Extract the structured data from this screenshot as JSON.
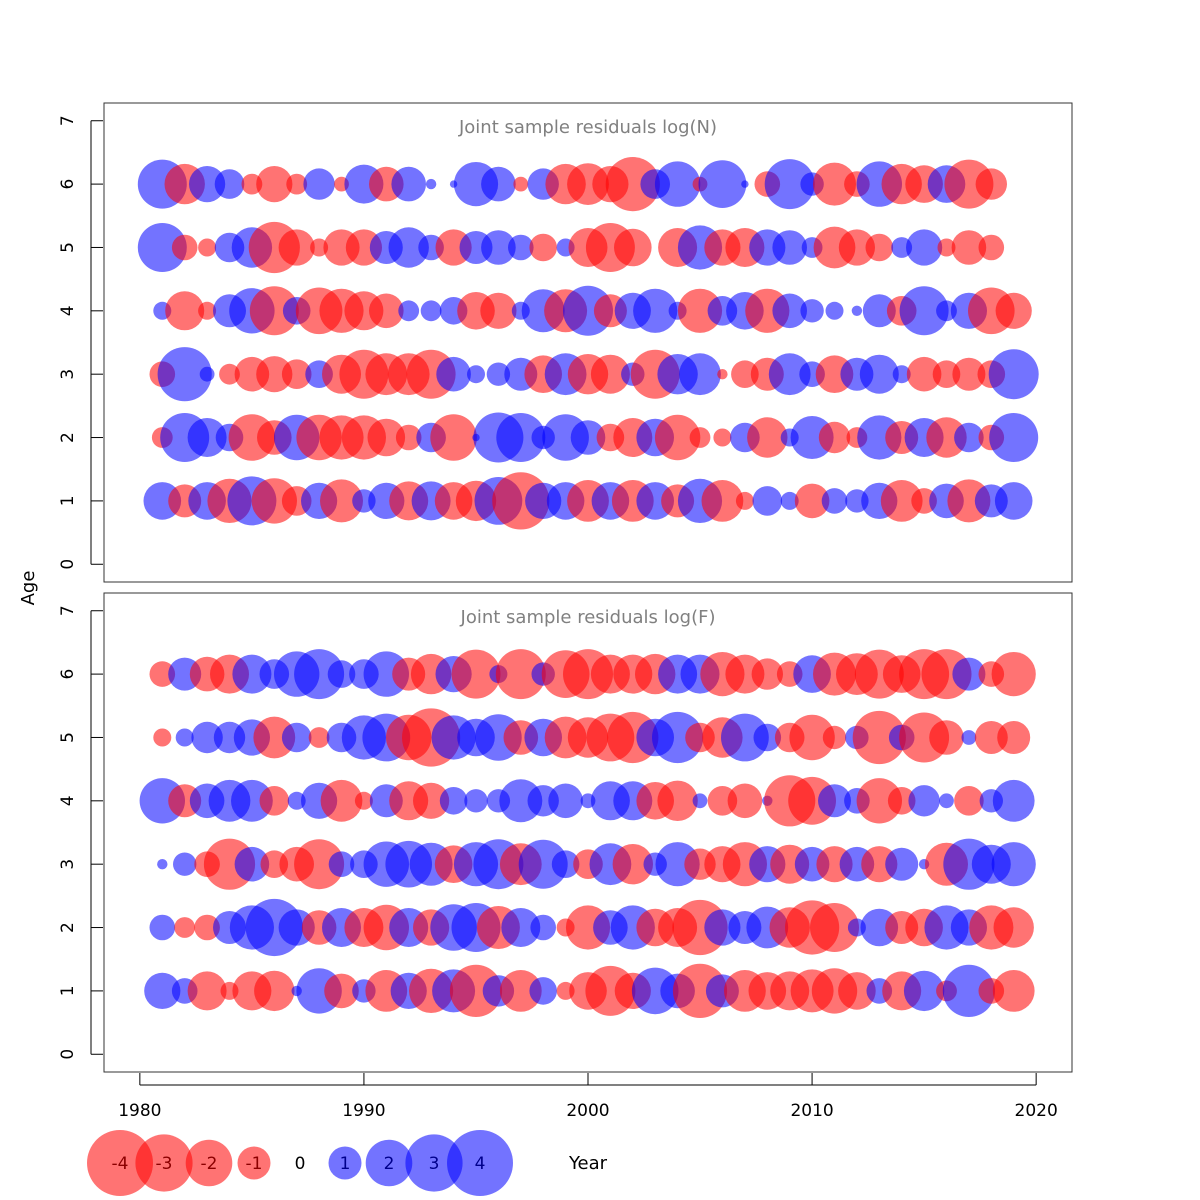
{
  "chart_data": {
    "type": "scatter",
    "subtype": "bubble",
    "colors": {
      "negative": "#FF0000",
      "positive": "#0000FF",
      "opacity": 0.55
    },
    "x_axis": {
      "label": "Year",
      "ticks": [
        1980,
        1990,
        2000,
        2010,
        2020
      ],
      "range": [
        1978.4,
        2021.6
      ]
    },
    "y_axis": {
      "label": "Age",
      "ticks": [
        0,
        1,
        2,
        3,
        4,
        5,
        6,
        7
      ],
      "range": [
        -0.28,
        7.28
      ]
    },
    "legend": {
      "position": "bottom-left",
      "values": [
        -4,
        -3,
        -2,
        -1,
        0,
        1,
        2,
        3,
        4
      ],
      "labels": [
        "-4",
        "-3",
        "-2",
        "-1",
        "0",
        "1",
        "2",
        "3",
        "4"
      ]
    },
    "years": [
      1981,
      1982,
      1983,
      1984,
      1985,
      1986,
      1987,
      1988,
      1989,
      1990,
      1991,
      1992,
      1993,
      1994,
      1995,
      1996,
      1997,
      1998,
      1999,
      2000,
      2001,
      2002,
      2003,
      2004,
      2005,
      2006,
      2007,
      2008,
      2009,
      2010,
      2011,
      2012,
      2013,
      2014,
      2015,
      2016,
      2017,
      2018,
      2019
    ],
    "panels": [
      {
        "title": "Joint sample residuals log(N)",
        "residuals": [
          {
            "age": 6,
            "values": [
              2.2,
              -1.5,
              1.2,
              0.8,
              -0.4,
              -1.2,
              -0.4,
              0.9,
              -0.2,
              1.4,
              -1.1,
              1.1,
              0.1,
              0.05,
              1.8,
              1.1,
              -0.2,
              0.9,
              -1.5,
              -1.6,
              -1.2,
              -2.7,
              0.8,
              1.9,
              -0.2,
              2.1,
              0.05,
              -0.6,
              2.3,
              0.5,
              -1.7,
              -0.6,
              1.9,
              -1.5,
              -1.3,
              1.3,
              -2.2,
              -0.9,
              0.0
            ]
          },
          {
            "age": 5,
            "values": [
              2.2,
              -0.6,
              -0.3,
              0.8,
              1.5,
              -2.4,
              -1.2,
              -0.3,
              -1.2,
              -1.2,
              1.0,
              1.5,
              0.6,
              -1.2,
              1.0,
              1.1,
              0.6,
              -0.7,
              0.3,
              -1.4,
              -2.2,
              -1.3,
              0.0,
              -1.4,
              1.8,
              -1.2,
              -1.4,
              1.2,
              1.1,
              0.4,
              -1.6,
              -1.2,
              -0.7,
              0.4,
              1.2,
              -0.3,
              -1.1,
              -0.6,
              0.0
            ]
          },
          {
            "age": 4,
            "values": [
              0.3,
              -1.4,
              -0.3,
              1.0,
              1.9,
              -2.2,
              0.7,
              -2.0,
              -1.8,
              -1.4,
              -1.1,
              0.4,
              0.4,
              0.7,
              -1.3,
              -1.2,
              0.3,
              1.7,
              -1.7,
              2.3,
              -1.0,
              1.2,
              1.8,
              0.3,
              -1.8,
              0.8,
              1.3,
              -1.8,
              1.1,
              0.5,
              0.3,
              0.1,
              1.0,
              -0.8,
              2.2,
              0.4,
              1.2,
              -2.0,
              -1.2
            ]
          },
          {
            "age": 3,
            "values": [
              -0.6,
              2.7,
              0.2,
              -0.4,
              -1.1,
              -1.2,
              -0.8,
              0.7,
              -1.4,
              -2.2,
              -1.6,
              -1.6,
              -2.2,
              1.1,
              0.3,
              0.5,
              1.0,
              -1.3,
              1.6,
              -1.5,
              -1.4,
              0.5,
              -2.2,
              1.5,
              1.6,
              -0.1,
              -0.7,
              -1.0,
              1.6,
              0.6,
              -1.3,
              1.0,
              1.4,
              0.3,
              -1.1,
              -0.7,
              -1.0,
              -0.7,
              2.3
            ]
          },
          {
            "age": 2,
            "values": [
              -0.4,
              2.2,
              1.4,
              0.7,
              -2.0,
              -1.1,
              1.9,
              -1.9,
              -1.8,
              -1.8,
              -1.3,
              -0.6,
              0.8,
              -2.0,
              0.05,
              2.3,
              2.2,
              0.5,
              2.0,
              1.1,
              -0.7,
              -1.4,
              1.3,
              -1.9,
              -0.4,
              -0.3,
              0.8,
              -1.5,
              0.3,
              1.7,
              -0.9,
              -0.4,
              1.8,
              -1.0,
              1.4,
              -1.5,
              0.8,
              -0.6,
              2.2
            ]
          },
          {
            "age": 1,
            "values": [
              1.3,
              -1.0,
              1.3,
              -1.8,
              2.2,
              -1.9,
              -0.8,
              1.2,
              -1.7,
              0.5,
              1.2,
              -1.4,
              1.4,
              -1.3,
              -1.5,
              2.1,
              -3.0,
              1.2,
              1.3,
              -1.6,
              1.3,
              -1.6,
              1.3,
              -1.0,
              1.8,
              -1.6,
              -0.3,
              0.8,
              0.3,
              -1.1,
              0.6,
              0.5,
              1.2,
              -1.6,
              -0.6,
              1.1,
              -1.7,
              1.0,
              1.3
            ]
          }
        ]
      },
      {
        "title": "Joint sample residuals log(F)",
        "residuals": [
          {
            "age": 6,
            "values": [
              -0.6,
              1.0,
              -1.1,
              -1.4,
              1.4,
              0.8,
              1.9,
              2.3,
              0.7,
              0.8,
              1.9,
              -1.0,
              -1.5,
              1.2,
              -2.2,
              0.3,
              -2.3,
              0.5,
              -2.1,
              -2.3,
              -1.4,
              -1.4,
              -1.5,
              1.4,
              1.4,
              -1.8,
              -1.4,
              -0.9,
              -0.6,
              1.3,
              -1.7,
              -1.6,
              -2.2,
              -1.3,
              -2.3,
              -2.3,
              1.0,
              -0.6,
              -1.8
            ]
          },
          {
            "age": 5,
            "values": [
              -0.3,
              0.3,
              0.9,
              0.9,
              1.2,
              -1.6,
              0.8,
              -0.4,
              0.8,
              1.8,
              2.1,
              -1.9,
              -3.1,
              1.8,
              1.3,
              2.0,
              -1.1,
              1.3,
              -1.6,
              -1.5,
              -2.1,
              -2.4,
              1.3,
              2.4,
              -0.8,
              -1.5,
              2.1,
              0.7,
              -0.8,
              -1.9,
              -0.5,
              0.5,
              -2.6,
              0.6,
              -2.3,
              -1.1,
              0.2,
              -1.0,
              -1.0
            ]
          },
          {
            "age": 4,
            "values": [
              1.9,
              -1.0,
              1.1,
              1.6,
              1.6,
              -0.8,
              0.3,
              1.2,
              -1.6,
              -0.3,
              1.0,
              -1.4,
              -1.2,
              0.7,
              0.5,
              0.5,
              1.7,
              0.9,
              1.1,
              0.2,
              1.4,
              1.4,
              -1.3,
              -1.5,
              0.2,
              -0.8,
              -1.1,
              0.1,
              -2.4,
              -2.1,
              1.0,
              0.6,
              -1.9,
              -0.7,
              0.9,
              0.2,
              -0.8,
              0.5,
              1.6
            ]
          },
          {
            "age": 3,
            "values": [
              0.1,
              0.5,
              -0.6,
              -2.4,
              1.1,
              -0.7,
              -1.1,
              -2.3,
              0.6,
              0.7,
              1.9,
              2.0,
              1.7,
              -1.3,
              1.8,
              2.3,
              -1.6,
              2.2,
              0.7,
              -0.8,
              1.6,
              -1.5,
              0.5,
              1.8,
              -0.9,
              -1.2,
              -1.8,
              1.2,
              -1.4,
              1.1,
              -1.2,
              1.1,
              -1.2,
              1.0,
              0.1,
              -1.7,
              2.4,
              1.4,
              1.8
            ]
          },
          {
            "age": 2,
            "values": [
              0.6,
              -0.4,
              -0.6,
              1.0,
              1.8,
              3.0,
              1.2,
              -1.1,
              1.4,
              -1.4,
              -1.9,
              1.4,
              -1.2,
              2.0,
              2.2,
              -1.7,
              1.4,
              0.6,
              -0.3,
              -1.8,
              1.1,
              1.8,
              -1.3,
              -1.4,
              -2.8,
              1.2,
              1.0,
              1.6,
              -1.5,
              -2.7,
              -2.2,
              0.3,
              1.3,
              -1.0,
              -1.3,
              1.8,
              1.2,
              -1.8,
              -1.5
            ]
          },
          {
            "age": 1,
            "values": [
              1.2,
              0.6,
              -1.4,
              -0.3,
              -1.4,
              -1.5,
              0.1,
              1.9,
              -1.1,
              0.5,
              -1.6,
              1.2,
              -1.8,
              1.7,
              -2.5,
              0.9,
              -1.6,
              0.7,
              -0.3,
              -1.3,
              -2.3,
              -1.2,
              2.0,
              1.1,
              -2.7,
              1.0,
              -1.6,
              -1.3,
              -1.4,
              -1.7,
              -1.9,
              -1.3,
              0.6,
              -1.4,
              1.5,
              -0.4,
              2.5,
              -0.6,
              -1.6
            ]
          }
        ]
      }
    ]
  }
}
